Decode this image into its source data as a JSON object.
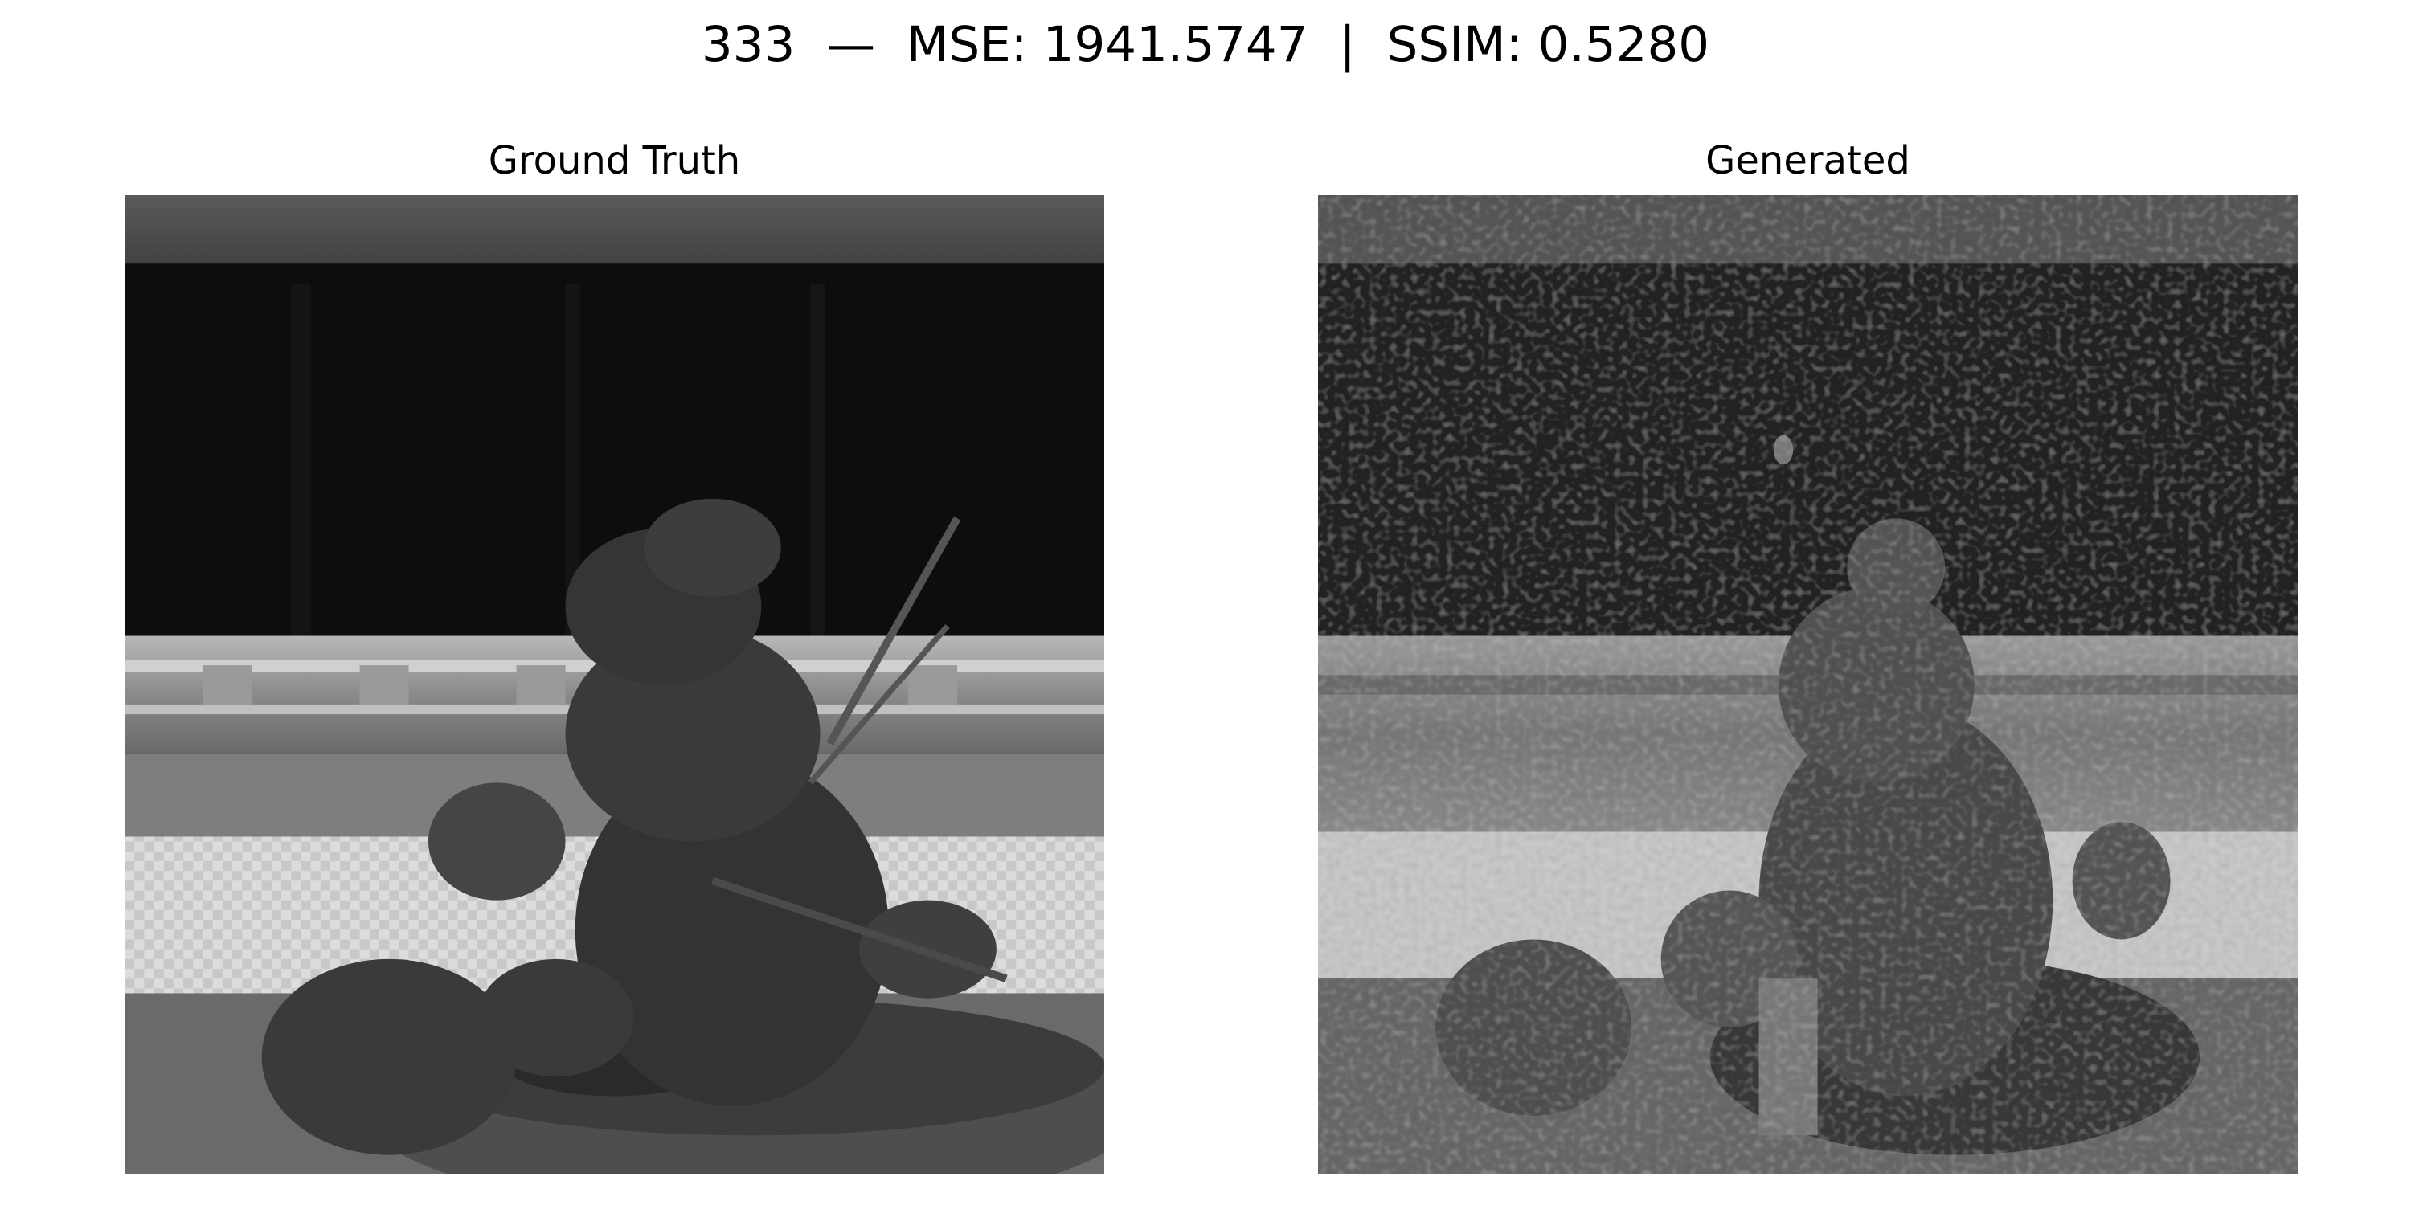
{
  "figure": {
    "title": "333  —  MSE: 1941.5747  |  SSIM: 0.5280"
  },
  "panels": [
    {
      "title": "Ground Truth"
    },
    {
      "title": "Generated"
    }
  ]
}
